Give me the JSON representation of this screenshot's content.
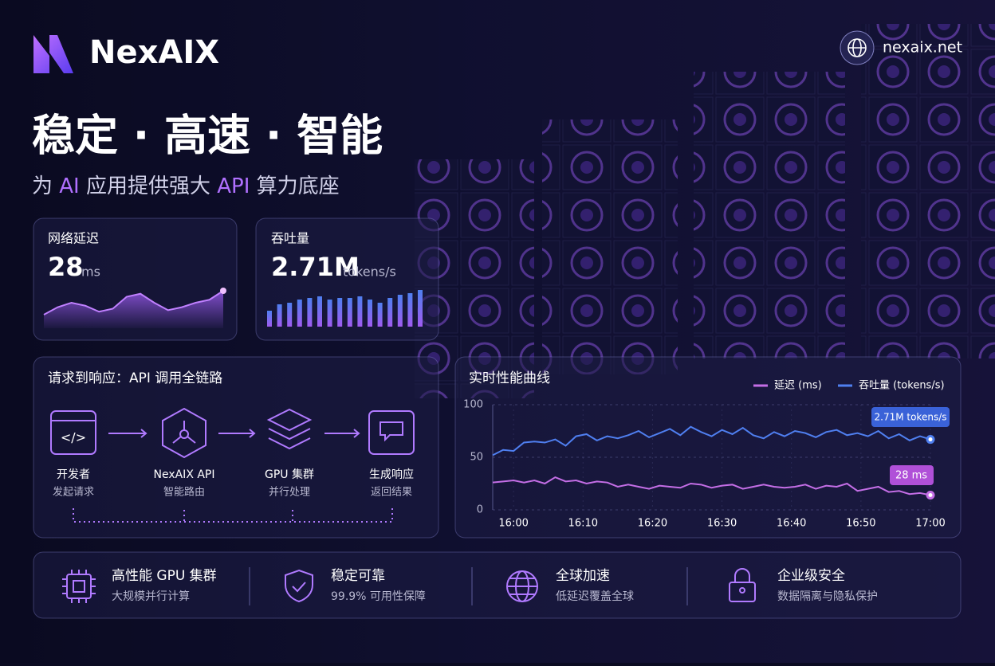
{
  "header": {
    "logo": "NexAIX",
    "site": "nexaix.net",
    "headline": "稳定 · 高速 · 智能",
    "subtitle": [
      "为 ",
      "AI",
      " 应用提供强大 ",
      "API",
      " 算力底座"
    ]
  },
  "metrics": [
    {
      "label": "网络延迟",
      "value": 28,
      "unit": "ms",
      "sparkline": [
        10,
        15,
        18,
        16,
        12,
        14,
        22,
        24,
        18,
        13,
        15,
        18,
        20,
        26
      ]
    },
    {
      "label": "吞吐量",
      "value": "2.71M",
      "unit": "tokens/s",
      "bars": [
        20,
        28,
        30,
        34,
        36,
        38,
        34,
        36,
        36,
        38,
        34,
        30,
        36,
        40,
        42,
        46
      ]
    }
  ],
  "flow": {
    "title": "请求到响应：API 调用全链路",
    "steps": [
      {
        "title": "开发者",
        "sub": "发起请求"
      },
      {
        "title": "NexAIX API",
        "sub": "智能路由"
      },
      {
        "title": "GPU 集群",
        "sub": "并行处理"
      },
      {
        "title": "生成响应",
        "sub": "返回结果"
      }
    ]
  },
  "chart_data": {
    "type": "line",
    "title": "实时性能曲线",
    "x": [
      -3,
      -1.5,
      0,
      1.5,
      3,
      4.5,
      6,
      7.5,
      9,
      10.5,
      12,
      13.5,
      15,
      16.5,
      18,
      19.5,
      21,
      22.5,
      24,
      25.5,
      27,
      28.5,
      30,
      31.5,
      33,
      34.5,
      36,
      37.5,
      39,
      40.5,
      42,
      43.5,
      45,
      46.5,
      48,
      49.5,
      51,
      52.5,
      54,
      55.5,
      57,
      58.5,
      60
    ],
    "xlim": [
      -3,
      60
    ],
    "xticks": [
      {
        "value": 0,
        "label": "16:00"
      },
      {
        "value": 10,
        "label": "16:10"
      },
      {
        "value": 20,
        "label": "16:20"
      },
      {
        "value": 30,
        "label": "16:30"
      },
      {
        "value": 40,
        "label": "16:40"
      },
      {
        "value": 50,
        "label": "16:50"
      },
      {
        "value": 60,
        "label": "17:00"
      }
    ],
    "ylim": [
      0,
      100
    ],
    "yticks": [
      0,
      50,
      100
    ],
    "grid": true,
    "series": [
      {
        "name": "延迟 (ms)",
        "color": "#c46ee6",
        "values": [
          26,
          27,
          28,
          26,
          28,
          25,
          31,
          27,
          28,
          25,
          27,
          26,
          22,
          24,
          22,
          20,
          23,
          22,
          21,
          25,
          24,
          21,
          23,
          24,
          20,
          22,
          24,
          22,
          21,
          22,
          24,
          20,
          23,
          22,
          25,
          18,
          20,
          22,
          17,
          18,
          15,
          16,
          14
        ]
      },
      {
        "name": "吞吐量 (tokens/s)",
        "color": "#4f7ff0",
        "values": [
          52,
          57,
          56,
          64,
          65,
          64,
          67,
          61,
          70,
          72,
          66,
          70,
          68,
          71,
          75,
          69,
          73,
          77,
          71,
          79,
          74,
          70,
          76,
          72,
          78,
          71,
          68,
          74,
          70,
          75,
          73,
          69,
          74,
          76,
          71,
          73,
          70,
          75,
          68,
          72,
          66,
          70,
          67
        ]
      }
    ],
    "annotations": [
      "2.71M tokens/s",
      "28 ms"
    ]
  },
  "features": [
    {
      "title": "高性能 GPU 集群",
      "sub": "大规模并行计算"
    },
    {
      "title": "稳定可靠",
      "sub": "99.9% 可用性保障"
    },
    {
      "title": "全球加速",
      "sub": "低延迟覆盖全球"
    },
    {
      "title": "企业级安全",
      "sub": "数据隔离与隐私保护"
    }
  ]
}
